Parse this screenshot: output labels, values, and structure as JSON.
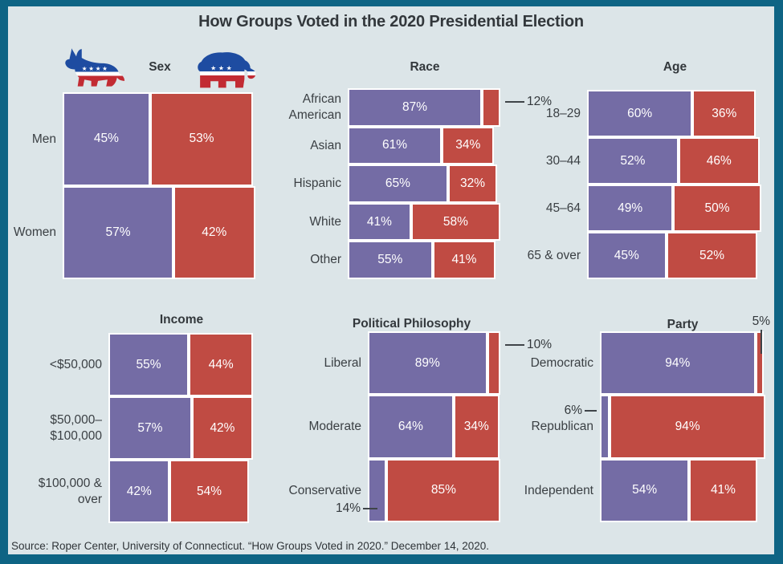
{
  "title": "How Groups Voted in the 2020 Presidential Election",
  "source": "Source: Roper Center, University of Connecticut. “How Groups Voted in 2020.” December 14, 2020.",
  "legend": {
    "democratic_icon": "donkey-icon",
    "republican_icon": "elephant-icon"
  },
  "colors": {
    "democratic": "#746CA5",
    "republican": "#C04B43",
    "background": "#DCE5E8",
    "frame": "#0E6484",
    "callout_line": "#3F4449"
  },
  "chart_data": {
    "type": "bar",
    "subtype": "horizontal-stacked-percentage",
    "series_names": [
      "Democratic",
      "Republican"
    ],
    "legend_position": "top-left-icons",
    "grid": false,
    "panels": [
      {
        "title": "Sex",
        "rows": [
          {
            "label": "Men",
            "segments": [
              {
                "party": "dem",
                "pct": 45,
                "text": "45%",
                "text_pos": "inside"
              },
              {
                "party": "rep",
                "pct": 53,
                "text": "53%",
                "text_pos": "inside"
              }
            ]
          },
          {
            "label": "Women",
            "segments": [
              {
                "party": "dem",
                "pct": 57,
                "text": "57%",
                "text_pos": "inside"
              },
              {
                "party": "rep",
                "pct": 42,
                "text": "42%",
                "text_pos": "inside"
              }
            ]
          }
        ]
      },
      {
        "title": "Race",
        "rows": [
          {
            "label": "African\nAmerican",
            "segments": [
              {
                "party": "dem",
                "pct": 87,
                "text": "87%",
                "text_pos": "inside"
              },
              {
                "party": "rep",
                "pct": 12,
                "text": "12%",
                "text_pos": "callout-right"
              }
            ]
          },
          {
            "label": "Asian",
            "segments": [
              {
                "party": "dem",
                "pct": 61,
                "text": "61%",
                "text_pos": "inside"
              },
              {
                "party": "rep",
                "pct": 34,
                "text": "34%",
                "text_pos": "inside"
              }
            ]
          },
          {
            "label": "Hispanic",
            "segments": [
              {
                "party": "dem",
                "pct": 65,
                "text": "65%",
                "text_pos": "inside"
              },
              {
                "party": "rep",
                "pct": 32,
                "text": "32%",
                "text_pos": "inside"
              }
            ]
          },
          {
            "label": "White",
            "segments": [
              {
                "party": "dem",
                "pct": 41,
                "text": "41%",
                "text_pos": "inside"
              },
              {
                "party": "rep",
                "pct": 58,
                "text": "58%",
                "text_pos": "inside"
              }
            ]
          },
          {
            "label": "Other",
            "segments": [
              {
                "party": "dem",
                "pct": 55,
                "text": "55%",
                "text_pos": "inside"
              },
              {
                "party": "rep",
                "pct": 41,
                "text": "41%",
                "text_pos": "inside"
              }
            ]
          }
        ]
      },
      {
        "title": "Age",
        "rows": [
          {
            "label": "18–29",
            "segments": [
              {
                "party": "dem",
                "pct": 60,
                "text": "60%",
                "text_pos": "inside"
              },
              {
                "party": "rep",
                "pct": 36,
                "text": "36%",
                "text_pos": "inside"
              }
            ]
          },
          {
            "label": "30–44",
            "segments": [
              {
                "party": "dem",
                "pct": 52,
                "text": "52%",
                "text_pos": "inside"
              },
              {
                "party": "rep",
                "pct": 46,
                "text": "46%",
                "text_pos": "inside"
              }
            ]
          },
          {
            "label": "45–64",
            "segments": [
              {
                "party": "dem",
                "pct": 49,
                "text": "49%",
                "text_pos": "inside"
              },
              {
                "party": "rep",
                "pct": 50,
                "text": "50%",
                "text_pos": "inside"
              }
            ]
          },
          {
            "label": "65 & over",
            "segments": [
              {
                "party": "dem",
                "pct": 45,
                "text": "45%",
                "text_pos": "inside"
              },
              {
                "party": "rep",
                "pct": 52,
                "text": "52%",
                "text_pos": "inside"
              }
            ]
          }
        ]
      },
      {
        "title": "Income",
        "rows": [
          {
            "label": "<$50,000",
            "segments": [
              {
                "party": "dem",
                "pct": 55,
                "text": "55%",
                "text_pos": "inside"
              },
              {
                "party": "rep",
                "pct": 44,
                "text": "44%",
                "text_pos": "inside"
              }
            ]
          },
          {
            "label": "$50,000–\n$100,000",
            "segments": [
              {
                "party": "dem",
                "pct": 57,
                "text": "57%",
                "text_pos": "inside"
              },
              {
                "party": "rep",
                "pct": 42,
                "text": "42%",
                "text_pos": "inside"
              }
            ]
          },
          {
            "label": "$100,000 &\nover",
            "segments": [
              {
                "party": "dem",
                "pct": 42,
                "text": "42%",
                "text_pos": "inside"
              },
              {
                "party": "rep",
                "pct": 54,
                "text": "54%",
                "text_pos": "inside"
              }
            ]
          }
        ]
      },
      {
        "title": "Political Philosophy",
        "rows": [
          {
            "label": "Liberal",
            "segments": [
              {
                "party": "dem",
                "pct": 89,
                "text": "89%",
                "text_pos": "inside"
              },
              {
                "party": "rep",
                "pct": 10,
                "text": "10%",
                "text_pos": "callout-right"
              }
            ]
          },
          {
            "label": "Moderate",
            "segments": [
              {
                "party": "dem",
                "pct": 64,
                "text": "64%",
                "text_pos": "inside"
              },
              {
                "party": "rep",
                "pct": 34,
                "text": "34%",
                "text_pos": "inside"
              }
            ]
          },
          {
            "label": "Conservative",
            "segments": [
              {
                "party": "dem",
                "pct": 14,
                "text": "14%",
                "text_pos": "callout-bottom-left"
              },
              {
                "party": "rep",
                "pct": 85,
                "text": "85%",
                "text_pos": "inside"
              }
            ]
          }
        ]
      },
      {
        "title": "Party",
        "rows": [
          {
            "label": "Democratic",
            "segments": [
              {
                "party": "dem",
                "pct": 94,
                "text": "94%",
                "text_pos": "inside"
              },
              {
                "party": "rep",
                "pct": 5,
                "text": "5%",
                "text_pos": "callout-top"
              }
            ]
          },
          {
            "label": "Republican",
            "segments": [
              {
                "party": "dem",
                "pct": 6,
                "text": "6%",
                "text_pos": "callout-left"
              },
              {
                "party": "rep",
                "pct": 94,
                "text": "94%",
                "text_pos": "inside"
              }
            ]
          },
          {
            "label": "Independent",
            "segments": [
              {
                "party": "dem",
                "pct": 54,
                "text": "54%",
                "text_pos": "inside"
              },
              {
                "party": "rep",
                "pct": 41,
                "text": "41%",
                "text_pos": "inside"
              }
            ]
          }
        ]
      }
    ]
  }
}
